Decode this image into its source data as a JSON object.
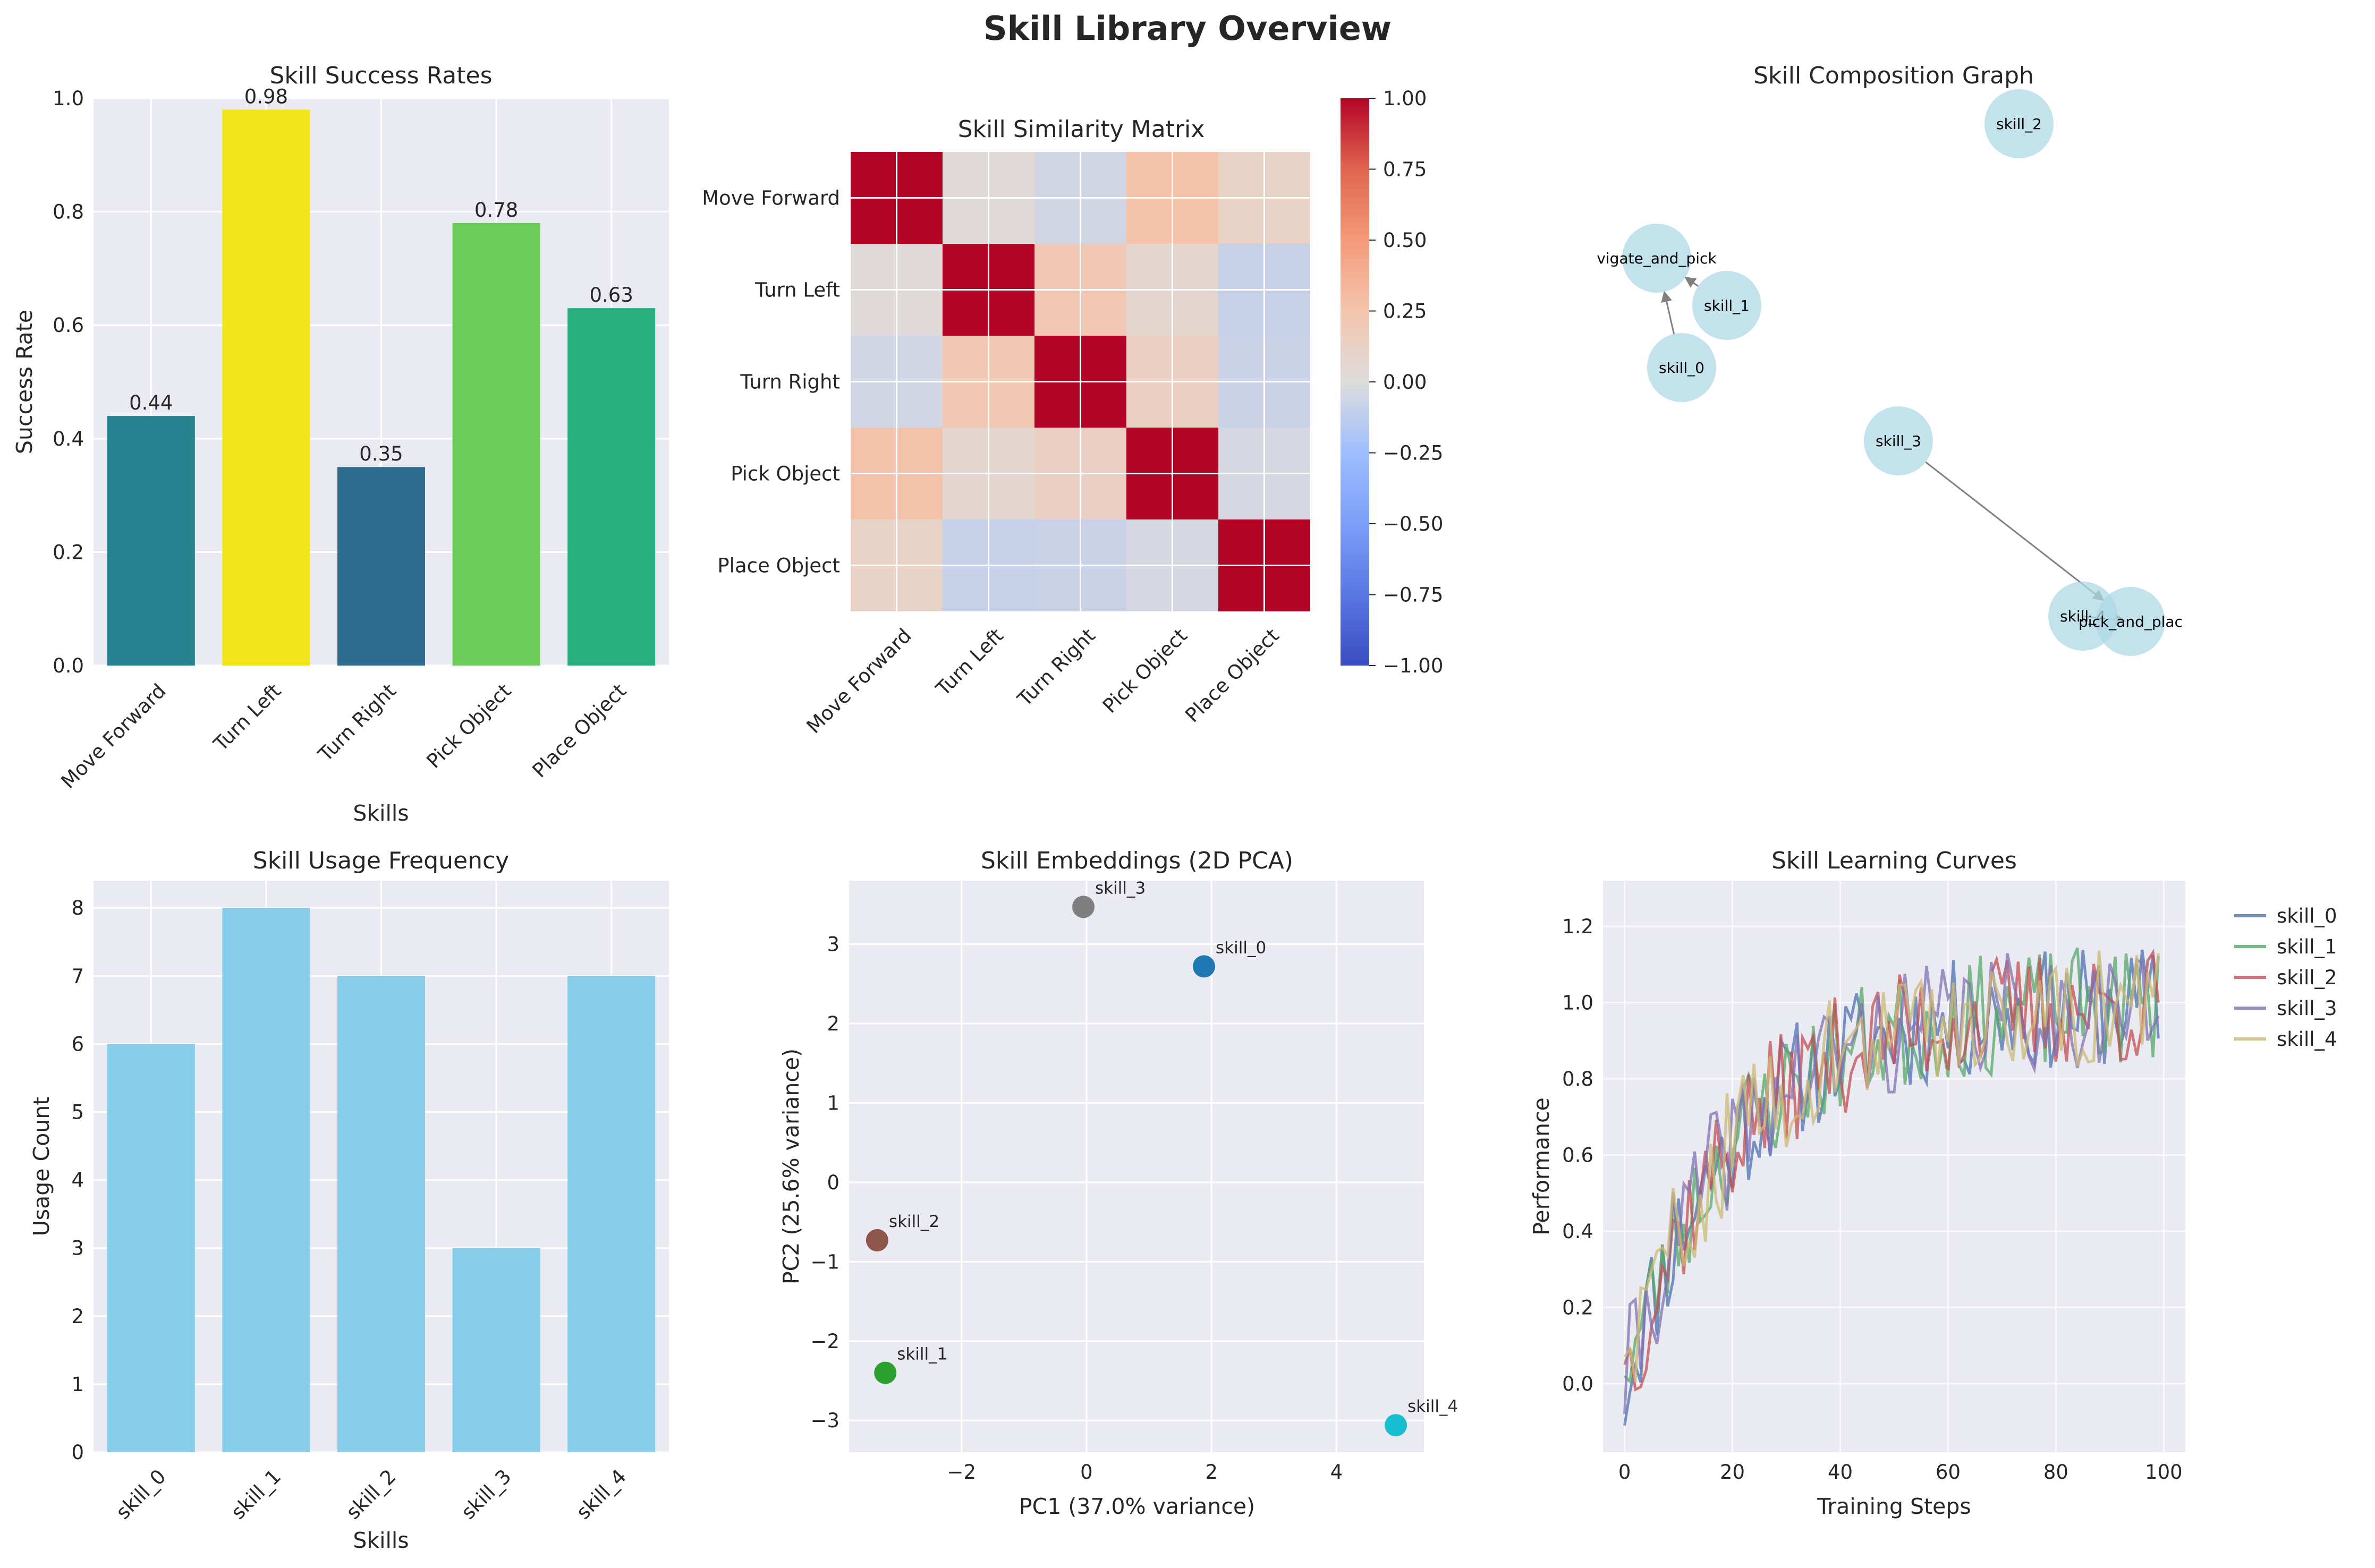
{
  "figure": {
    "title": "Skill Library Overview"
  },
  "chart_data": [
    {
      "id": "success",
      "type": "bar",
      "title": "Skill Success Rates",
      "xlabel": "Skills",
      "ylabel": "Success Rate",
      "categories": [
        "Move Forward",
        "Turn Left",
        "Turn Right",
        "Pick Object",
        "Place Object"
      ],
      "values": [
        0.44,
        0.98,
        0.35,
        0.78,
        0.63
      ],
      "value_labels": [
        "0.44",
        "0.98",
        "0.35",
        "0.78",
        "0.63"
      ],
      "colors": [
        "#26828e",
        "#f2e51c",
        "#2e6b8e",
        "#6ccd5a",
        "#29af7f"
      ],
      "ylim": [
        0,
        1.0
      ],
      "yticks": [
        0.0,
        0.2,
        0.4,
        0.6,
        0.8,
        1.0
      ],
      "ytick_labels": [
        "0.0",
        "0.2",
        "0.4",
        "0.6",
        "0.8",
        "1.0"
      ],
      "grid": true
    },
    {
      "id": "similarity",
      "type": "heatmap",
      "title": "Skill Similarity Matrix",
      "row_labels": [
        "Move Forward",
        "Turn Left",
        "Turn Right",
        "Pick Object",
        "Place Object"
      ],
      "col_labels": [
        "Move Forward",
        "Turn Left",
        "Turn Right",
        "Pick Object",
        "Place Object"
      ],
      "values": [
        [
          1.0,
          0.02,
          -0.05,
          0.27,
          0.12
        ],
        [
          0.02,
          1.0,
          0.22,
          0.07,
          -0.09
        ],
        [
          -0.05,
          0.22,
          1.0,
          0.14,
          -0.08
        ],
        [
          0.27,
          0.07,
          0.14,
          1.0,
          -0.03
        ],
        [
          0.12,
          -0.09,
          -0.08,
          -0.03,
          1.0
        ]
      ],
      "colorbar": {
        "range": [
          -1.0,
          1.0
        ],
        "ticks": [
          1.0,
          0.75,
          0.5,
          0.25,
          0.0,
          -0.25,
          -0.5,
          -0.75,
          -1.0
        ],
        "tick_labels": [
          "1.00",
          "0.75",
          "0.50",
          "0.25",
          "0.00",
          "−0.25",
          "−0.50",
          "−0.75",
          "−1.00"
        ],
        "colormap": "coolwarm"
      }
    },
    {
      "id": "graph",
      "type": "network",
      "title": "Skill Composition Graph",
      "nodes": [
        {
          "id": "skill_2",
          "label": "skill_2"
        },
        {
          "id": "navigate_and_pick",
          "label": "vigate_and_pick"
        },
        {
          "id": "skill_1",
          "label": "skill_1"
        },
        {
          "id": "skill_0",
          "label": "skill_0"
        },
        {
          "id": "skill_3",
          "label": "skill_3"
        },
        {
          "id": "skill_4",
          "label": "skill_4"
        },
        {
          "id": "pick_and_place",
          "label": "pick_and_plac"
        }
      ],
      "edges": [
        {
          "from": "skill_0",
          "to": "navigate_and_pick"
        },
        {
          "from": "skill_1",
          "to": "navigate_and_pick"
        },
        {
          "from": "skill_3",
          "to": "pick_and_place"
        },
        {
          "from": "skill_4",
          "to": "pick_and_place"
        }
      ],
      "node_color": "#add8e6",
      "edge_color": "#808080"
    },
    {
      "id": "usage",
      "type": "bar",
      "title": "Skill Usage Frequency",
      "xlabel": "Skills",
      "ylabel": "Usage Count",
      "categories": [
        "skill_0",
        "skill_1",
        "skill_2",
        "skill_3",
        "skill_4"
      ],
      "values": [
        6,
        8,
        7,
        3,
        7
      ],
      "color": "#87ceeb",
      "ylim": [
        0,
        8.4
      ],
      "yticks": [
        0,
        1,
        2,
        3,
        4,
        5,
        6,
        7,
        8
      ],
      "ytick_labels": [
        "0",
        "1",
        "2",
        "3",
        "4",
        "5",
        "6",
        "7",
        "8"
      ],
      "grid": true
    },
    {
      "id": "pca",
      "type": "scatter",
      "title": "Skill Embeddings (2D PCA)",
      "xlabel": "PC1 (37.0% variance)",
      "ylabel": "PC2 (25.6% variance)",
      "points": [
        {
          "label": "skill_0",
          "x": 1.88,
          "y": 2.72,
          "color": "#1f77b4"
        },
        {
          "label": "skill_1",
          "x": -3.22,
          "y": -2.4,
          "color": "#2ca02c"
        },
        {
          "label": "skill_2",
          "x": -3.35,
          "y": -0.73,
          "color": "#8c564b"
        },
        {
          "label": "skill_3",
          "x": -0.05,
          "y": 3.47,
          "color": "#7f7f7f"
        },
        {
          "label": "skill_4",
          "x": 4.95,
          "y": -3.06,
          "color": "#17becf"
        }
      ],
      "xlim": [
        -3.8,
        5.4
      ],
      "ylim": [
        -3.4,
        3.8
      ],
      "xticks": [
        -2,
        0,
        2,
        4
      ],
      "xtick_labels": [
        "−2",
        "0",
        "2",
        "4"
      ],
      "yticks": [
        -3,
        -2,
        -1,
        0,
        1,
        2,
        3
      ],
      "ytick_labels": [
        "−3",
        "−2",
        "−1",
        "0",
        "1",
        "2",
        "3"
      ],
      "grid": true
    },
    {
      "id": "curves",
      "type": "line",
      "title": "Skill Learning Curves",
      "xlabel": "Training Steps",
      "ylabel": "Performance",
      "x_range": [
        0,
        99
      ],
      "xlim": [
        -4,
        104
      ],
      "ylim": [
        -0.18,
        1.32
      ],
      "xticks": [
        0,
        20,
        40,
        60,
        80,
        100
      ],
      "xtick_labels": [
        "0",
        "20",
        "40",
        "60",
        "80",
        "100"
      ],
      "yticks": [
        0.0,
        0.2,
        0.4,
        0.6,
        0.8,
        1.0,
        1.2
      ],
      "ytick_labels": [
        "0.0",
        "0.2",
        "0.4",
        "0.6",
        "0.8",
        "1.0",
        "1.2"
      ],
      "curve_model": {
        "form": "1 - exp(-x/20)",
        "noise_amplitude": 0.1
      },
      "series": [
        {
          "name": "skill_0",
          "color": "#4c72b0",
          "seed": 11,
          "start": -0.11
        },
        {
          "name": "skill_1",
          "color": "#55a868",
          "seed": 23,
          "start": 0.02
        },
        {
          "name": "skill_2",
          "color": "#c44e52",
          "seed": 37,
          "start": 0.05
        },
        {
          "name": "skill_3",
          "color": "#8172b2",
          "seed": 41,
          "start": -0.08
        },
        {
          "name": "skill_4",
          "color": "#ccb974",
          "seed": 59,
          "start": 0.07
        }
      ],
      "legend_position": "outside-right",
      "grid": true
    }
  ]
}
